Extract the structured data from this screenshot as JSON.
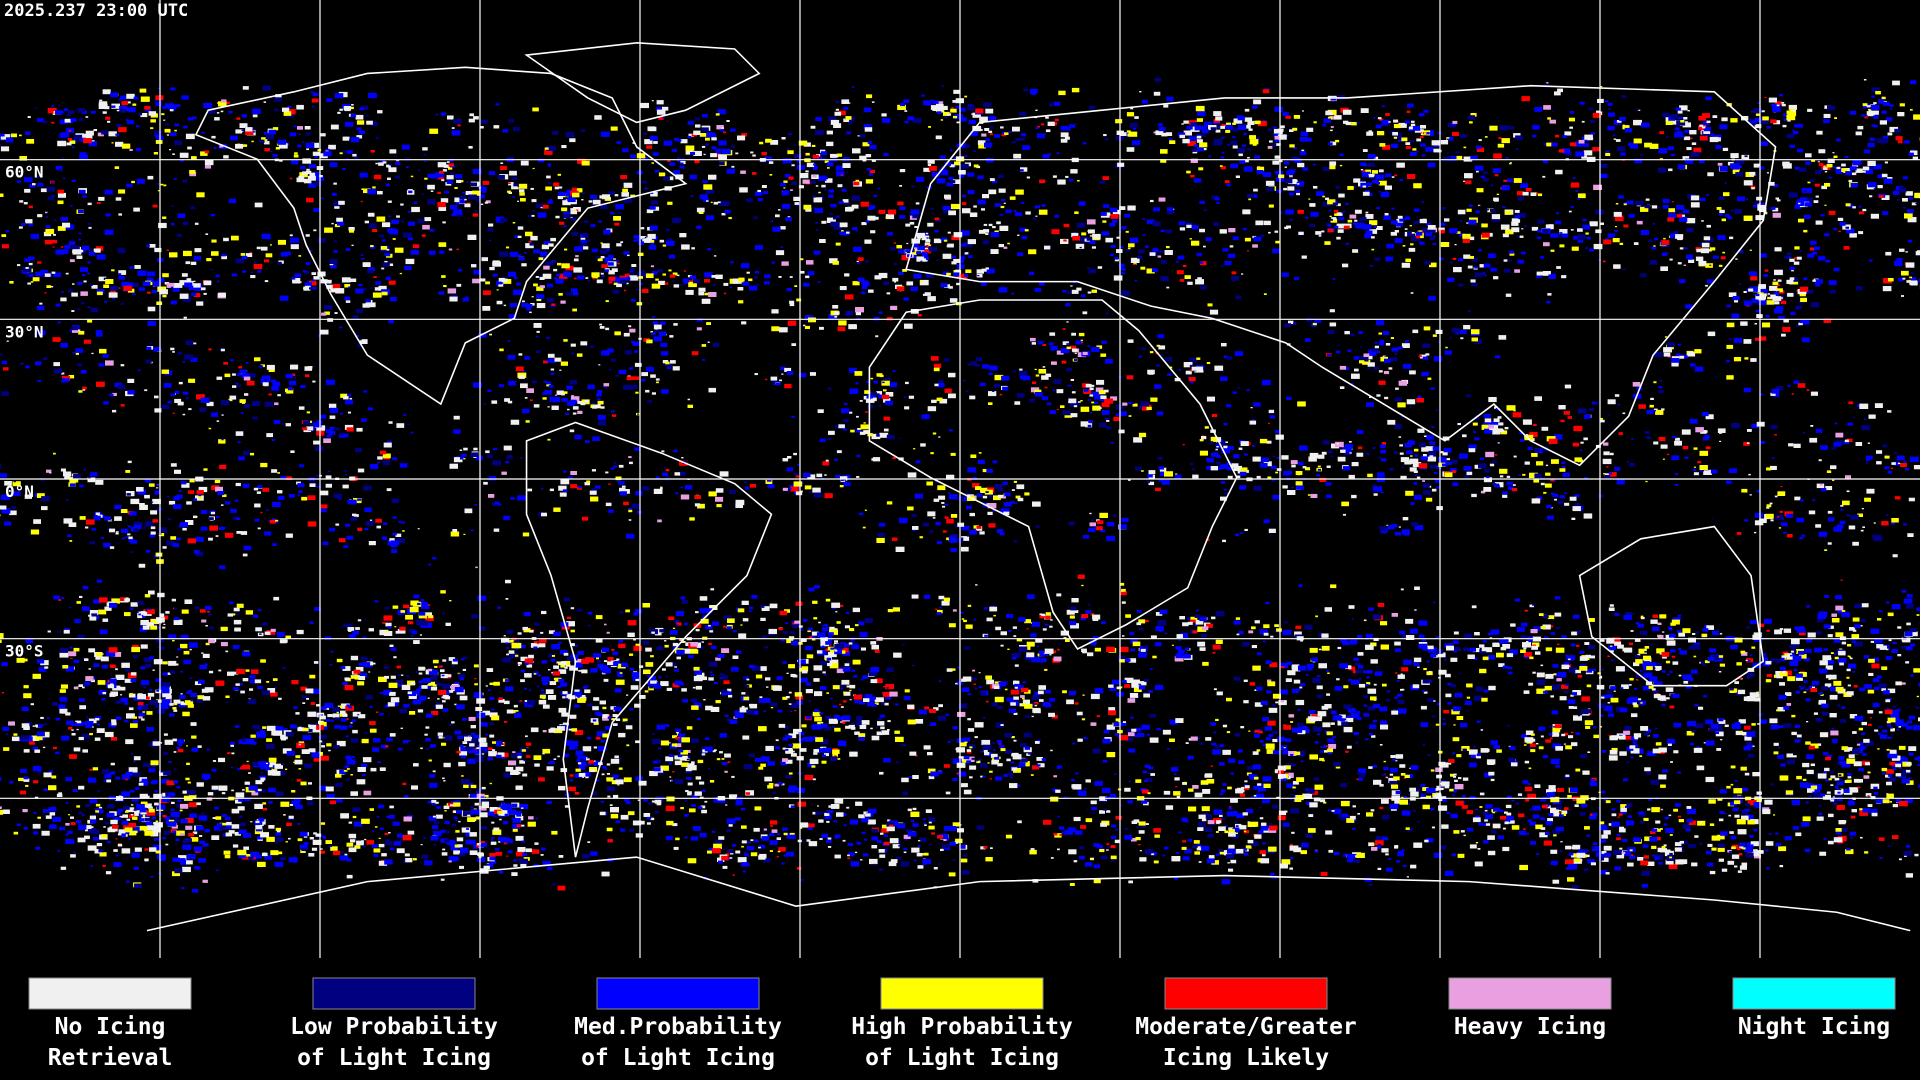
{
  "header": {
    "timestamp": "2025.237 23:00 UTC"
  },
  "map": {
    "latitude_labels": [
      "60°N",
      "30°N",
      "0°N",
      "30°S"
    ]
  },
  "legend": {
    "items": [
      {
        "label": [
          "No Icing",
          "Retrieval"
        ],
        "color": "#f0f0f0"
      },
      {
        "label": [
          "Low Probability",
          "of Light Icing"
        ],
        "color": "#000080"
      },
      {
        "label": [
          "Med.Probability",
          "of Light Icing"
        ],
        "color": "#0000ff"
      },
      {
        "label": [
          "High Probability",
          "of Light Icing"
        ],
        "color": "#ffff00"
      },
      {
        "label": [
          "Moderate/Greater",
          "Icing Likely"
        ],
        "color": "#ff0000"
      },
      {
        "label": [
          "Heavy Icing"
        ],
        "color": "#e8a0e0"
      },
      {
        "label": [
          "Night Icing"
        ],
        "color": "#00ffff"
      }
    ]
  }
}
